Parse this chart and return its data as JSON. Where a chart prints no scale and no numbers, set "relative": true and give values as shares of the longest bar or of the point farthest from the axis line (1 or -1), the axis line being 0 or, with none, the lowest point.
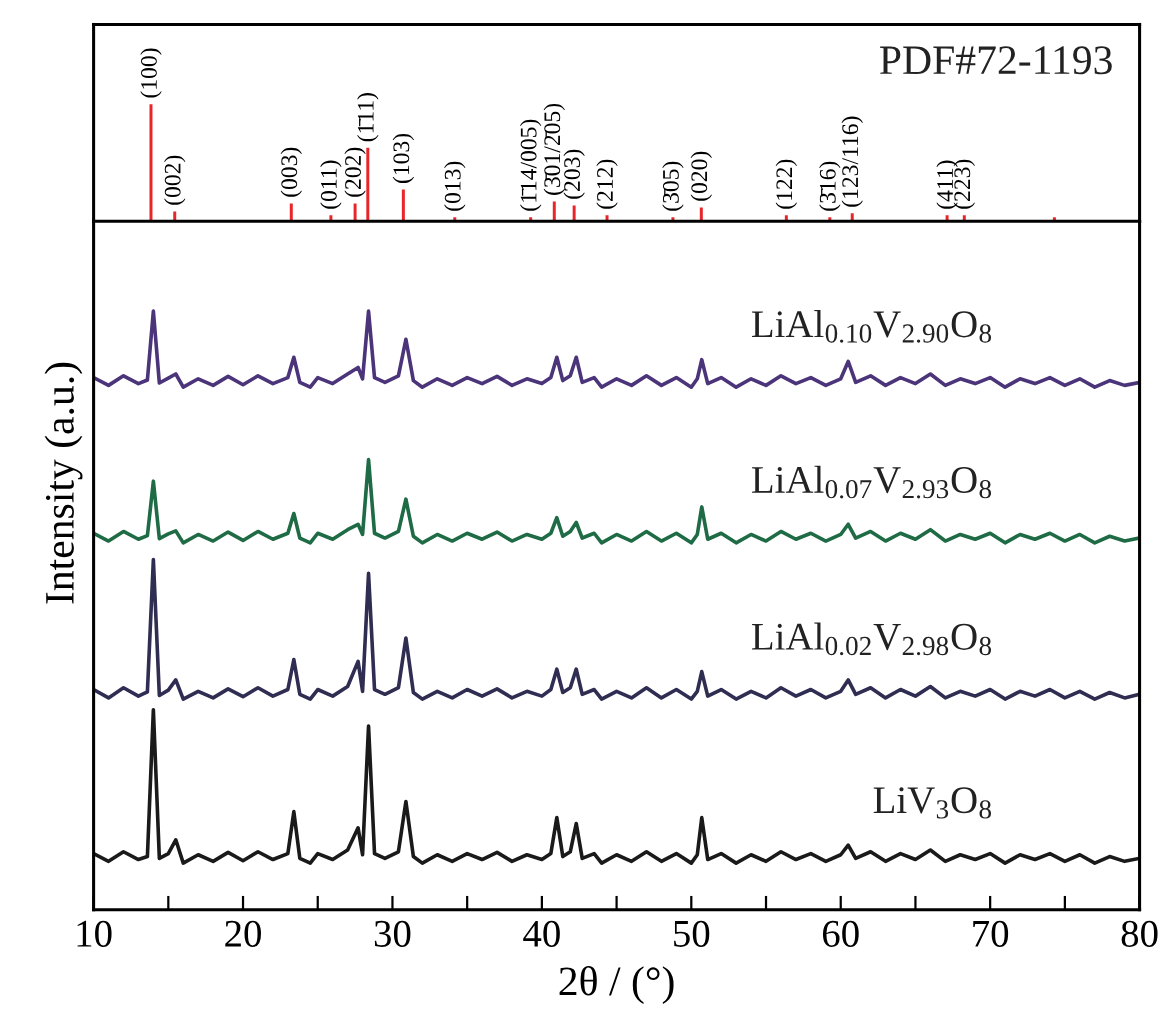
{
  "chart_data": [
    {
      "type": "bar",
      "relative": true,
      "xlim": [
        10,
        80
      ],
      "series": [
        {
          "name": "PDF#72-1193",
          "color": "#e8262a",
          "x": [
            13.84,
            15.43,
            23.23,
            25.88,
            27.5,
            28.35,
            30.73,
            34.17,
            39.25,
            40.83,
            42.16,
            44.36,
            48.77,
            50.67,
            56.36,
            59.27,
            60.77,
            67.12,
            68.27,
            74.3
          ],
          "values": [
            1,
            0.085,
            0.153,
            0.051,
            0.153,
            0.627,
            0.271,
            0.034,
            0.034,
            0.169,
            0.136,
            0.051,
            0.034,
            0.119,
            0.051,
            0.034,
            0.068,
            0.051,
            0.051,
            0.034
          ]
        }
      ],
      "annotations": [
        {
          "text": "(100)",
          "x": 13.84,
          "y": 1
        },
        {
          "text": "(002)",
          "x": 15.43,
          "y": 0.085
        },
        {
          "text": "(003)",
          "x": 23.23,
          "y": 0.153
        },
        {
          "text": "(011)",
          "x": 25.88,
          "y": 0.051
        },
        {
          "text": "(202)",
          "x": 27.5,
          "y": 0.153
        },
        {
          "text": "(1̄11)",
          "x": 28.35,
          "y": 0.627
        },
        {
          "text": "(103)",
          "x": 30.73,
          "y": 0.271
        },
        {
          "text": "(013)",
          "x": 34.17,
          "y": 0.034
        },
        {
          "text": "(1̄14/005)",
          "x": 39.25,
          "y": 0.034
        },
        {
          "text": "(3̄01/2̄05)",
          "x": 40.83,
          "y": 0.169
        },
        {
          "text": "(203)",
          "x": 42.16,
          "y": 0.136
        },
        {
          "text": "(212)",
          "x": 44.36,
          "y": 0.051
        },
        {
          "text": "(3̄05)",
          "x": 48.77,
          "y": 0.034
        },
        {
          "text": "(020)",
          "x": 50.67,
          "y": 0.119
        },
        {
          "text": "(122)",
          "x": 56.36,
          "y": 0.051
        },
        {
          "text": "(3̄16)",
          "x": 59.27,
          "y": 0.034
        },
        {
          "text": "(123/116)",
          "x": 60.77,
          "y": 0.068
        },
        {
          "text": "(411)",
          "x": 67.12,
          "y": 0.051
        },
        {
          "text": "(223)",
          "x": 68.27,
          "y": 0.051
        }
      ]
    },
    {
      "type": "line",
      "relative": true,
      "xlabel": "2θ / (°)",
      "ylabel": "Intensity (a.u.)",
      "xlim": [
        10,
        80
      ],
      "xticks": [
        10,
        {
          "value": 15,
          "label": null
        },
        20,
        {
          "value": 25,
          "label": null
        },
        30,
        {
          "value": 35,
          "label": null
        },
        40,
        {
          "value": 45,
          "label": null
        },
        50,
        {
          "value": 55,
          "label": null
        },
        60,
        {
          "value": 65,
          "label": null
        },
        70,
        {
          "value": 75,
          "label": null
        },
        80
      ],
      "x": [
        10,
        11,
        12,
        13,
        13.6,
        14.0,
        14.4,
        15,
        15.5,
        16,
        17,
        18,
        19,
        20,
        21,
        22,
        23,
        23.4,
        23.8,
        24.5,
        25,
        26,
        27,
        27.7,
        28.0,
        28.4,
        28.8,
        29.5,
        30.4,
        30.9,
        31.4,
        32,
        33,
        34,
        35,
        36,
        37,
        38,
        39,
        40,
        40.6,
        41.0,
        41.4,
        41.9,
        42.3,
        42.7,
        43.5,
        44,
        45,
        46,
        47,
        48,
        49,
        50,
        50.4,
        50.7,
        51.1,
        52,
        53,
        54,
        55,
        56,
        57,
        58,
        59,
        60,
        60.5,
        61,
        62,
        63,
        64,
        65,
        66,
        67,
        68,
        69,
        70,
        71,
        72,
        73,
        74,
        75,
        76,
        77,
        78,
        79,
        80
      ],
      "series": [
        {
          "name": "LiAl$_{0.10}$V$_{2.90}$O$_{8}$",
          "color": "#4b3479",
          "values": [
            0.889,
            0.876,
            0.892,
            0.879,
            0.885,
            1,
            0.88,
            0.888,
            0.895,
            0.873,
            0.887,
            0.876,
            0.891,
            0.877,
            0.892,
            0.879,
            0.889,
            0.923,
            0.881,
            0.873,
            0.889,
            0.879,
            0.895,
            0.906,
            0.887,
            1,
            0.889,
            0.881,
            0.892,
            0.953,
            0.884,
            0.873,
            0.887,
            0.876,
            0.889,
            0.879,
            0.891,
            0.876,
            0.887,
            0.879,
            0.889,
            0.923,
            0.884,
            0.892,
            0.923,
            0.881,
            0.889,
            0.873,
            0.887,
            0.876,
            0.892,
            0.876,
            0.889,
            0.873,
            0.887,
            0.919,
            0.879,
            0.889,
            0.873,
            0.887,
            0.876,
            0.892,
            0.879,
            0.889,
            0.876,
            0.887,
            0.916,
            0.881,
            0.892,
            0.876,
            0.889,
            0.879,
            0.895,
            0.876,
            0.887,
            0.879,
            0.889,
            0.873,
            0.887,
            0.879,
            0.889,
            0.876,
            0.887,
            0.873,
            0.884,
            0.876,
            0.881
          ]
        },
        {
          "name": "LiAl$_{0.07}$V$_{2.93}$O$_{8}$",
          "color": "#1e6b45",
          "values": [
            0.629,
            0.616,
            0.632,
            0.619,
            0.625,
            0.716,
            0.62,
            0.628,
            0.633,
            0.613,
            0.627,
            0.616,
            0.631,
            0.617,
            0.632,
            0.619,
            0.629,
            0.662,
            0.621,
            0.613,
            0.629,
            0.619,
            0.635,
            0.644,
            0.627,
            0.752,
            0.629,
            0.621,
            0.632,
            0.686,
            0.624,
            0.613,
            0.627,
            0.616,
            0.629,
            0.619,
            0.631,
            0.616,
            0.627,
            0.619,
            0.629,
            0.655,
            0.624,
            0.632,
            0.647,
            0.621,
            0.629,
            0.613,
            0.627,
            0.616,
            0.632,
            0.616,
            0.629,
            0.613,
            0.627,
            0.673,
            0.619,
            0.629,
            0.613,
            0.627,
            0.616,
            0.632,
            0.619,
            0.629,
            0.616,
            0.627,
            0.644,
            0.621,
            0.632,
            0.616,
            0.629,
            0.619,
            0.635,
            0.616,
            0.627,
            0.619,
            0.629,
            0.613,
            0.627,
            0.619,
            0.629,
            0.616,
            0.627,
            0.613,
            0.624,
            0.616,
            0.621
          ]
        },
        {
          "name": "LiAl$_{0.02}$V$_{2.98}$O$_{8}$",
          "color": "#2f2d52",
          "values": [
            0.368,
            0.354,
            0.371,
            0.357,
            0.364,
            0.585,
            0.358,
            0.367,
            0.384,
            0.352,
            0.365,
            0.354,
            0.369,
            0.356,
            0.371,
            0.357,
            0.368,
            0.418,
            0.36,
            0.352,
            0.368,
            0.357,
            0.373,
            0.415,
            0.365,
            0.562,
            0.368,
            0.36,
            0.371,
            0.454,
            0.363,
            0.352,
            0.365,
            0.354,
            0.368,
            0.357,
            0.369,
            0.354,
            0.365,
            0.357,
            0.368,
            0.402,
            0.363,
            0.371,
            0.402,
            0.36,
            0.368,
            0.352,
            0.365,
            0.354,
            0.371,
            0.354,
            0.368,
            0.352,
            0.365,
            0.398,
            0.357,
            0.368,
            0.352,
            0.365,
            0.354,
            0.371,
            0.357,
            0.368,
            0.354,
            0.365,
            0.384,
            0.36,
            0.371,
            0.354,
            0.368,
            0.357,
            0.373,
            0.354,
            0.365,
            0.357,
            0.368,
            0.352,
            0.365,
            0.357,
            0.368,
            0.354,
            0.365,
            0.352,
            0.363,
            0.354,
            0.36
          ]
        },
        {
          "name": "LiV$_{3}$O$_{8}$",
          "color": "#1a1a1a",
          "values": [
            0.094,
            0.081,
            0.097,
            0.084,
            0.089,
            0.334,
            0.086,
            0.094,
            0.117,
            0.078,
            0.092,
            0.081,
            0.096,
            0.082,
            0.097,
            0.084,
            0.094,
            0.164,
            0.086,
            0.078,
            0.094,
            0.084,
            0.1,
            0.137,
            0.092,
            0.307,
            0.094,
            0.086,
            0.097,
            0.181,
            0.089,
            0.078,
            0.092,
            0.081,
            0.094,
            0.084,
            0.096,
            0.081,
            0.092,
            0.084,
            0.094,
            0.154,
            0.089,
            0.097,
            0.144,
            0.086,
            0.094,
            0.078,
            0.092,
            0.081,
            0.097,
            0.081,
            0.094,
            0.078,
            0.092,
            0.154,
            0.084,
            0.094,
            0.078,
            0.092,
            0.081,
            0.097,
            0.084,
            0.094,
            0.081,
            0.092,
            0.108,
            0.086,
            0.097,
            0.081,
            0.094,
            0.084,
            0.1,
            0.081,
            0.092,
            0.084,
            0.094,
            0.078,
            0.092,
            0.084,
            0.094,
            0.081,
            0.092,
            0.078,
            0.089,
            0.081,
            0.086
          ]
        }
      ]
    }
  ]
}
